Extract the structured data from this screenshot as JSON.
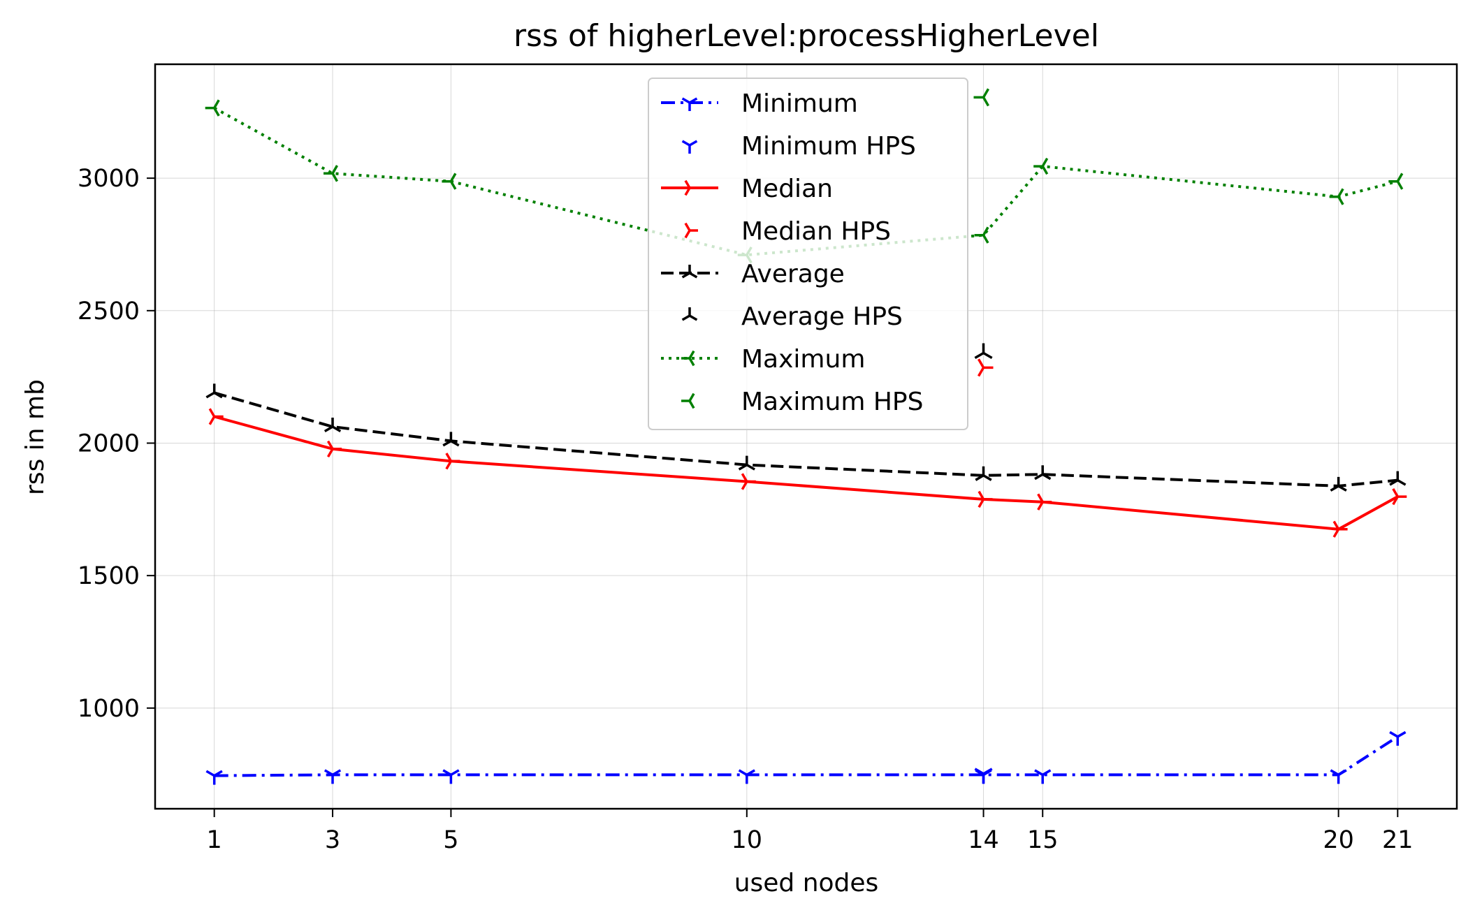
{
  "chart_data": {
    "type": "line",
    "title": "rss of higherLevel:processHigherLevel",
    "xlabel": "used nodes",
    "ylabel": "rss in mb",
    "xlim": [
      0.0,
      22.0
    ],
    "ylim": [
      620,
      3430
    ],
    "x_ticks": [
      1,
      3,
      5,
      10,
      14,
      15,
      20,
      21
    ],
    "y_ticks": [
      1000,
      1500,
      2000,
      2500,
      3000
    ],
    "grid": true,
    "legend_position": "top-center",
    "x": [
      1,
      3,
      5,
      10,
      14,
      15,
      20,
      21
    ],
    "series": [
      {
        "name": "Minimum",
        "color": "#0000ff",
        "dash": "dashdot",
        "marker": "tri_down",
        "values": [
          745,
          748,
          748,
          748,
          748,
          748,
          748,
          892
        ]
      },
      {
        "name": "Median",
        "color": "#ff0000",
        "dash": "solid",
        "marker": "tri_right",
        "values": [
          2100,
          1978,
          1932,
          1855,
          1788,
          1778,
          1675,
          1798
        ]
      },
      {
        "name": "Average",
        "color": "#000000",
        "dash": "dashed",
        "marker": "tri_up",
        "values": [
          2190,
          2062,
          2008,
          1918,
          1878,
          1882,
          1838,
          1860
        ]
      },
      {
        "name": "Maximum",
        "color": "#008000",
        "dash": "dotted",
        "marker": "tri_left",
        "values": [
          3265,
          3018,
          2988,
          2710,
          2785,
          3045,
          2930,
          2988
        ]
      }
    ],
    "hps_points": [
      {
        "name": "Minimum HPS",
        "color": "#0000ff",
        "marker": "tri_down",
        "x": 14,
        "y": 752
      },
      {
        "name": "Median HPS",
        "color": "#ff0000",
        "marker": "tri_right",
        "x": 14,
        "y": 2285
      },
      {
        "name": "Average HPS",
        "color": "#000000",
        "marker": "tri_up",
        "x": 14,
        "y": 2340
      },
      {
        "name": "Maximum HPS",
        "color": "#008000",
        "marker": "tri_left",
        "x": 14,
        "y": 3305
      }
    ],
    "legend": [
      {
        "label": "Minimum",
        "color": "#0000ff",
        "dash": "dashdot",
        "marker": "tri_down",
        "line": true
      },
      {
        "label": "Minimum HPS",
        "color": "#0000ff",
        "marker": "tri_down",
        "line": false
      },
      {
        "label": "Median",
        "color": "#ff0000",
        "dash": "solid",
        "marker": "tri_right",
        "line": true
      },
      {
        "label": "Median HPS",
        "color": "#ff0000",
        "marker": "tri_right",
        "line": false
      },
      {
        "label": "Average",
        "color": "#000000",
        "dash": "dashed",
        "marker": "tri_up",
        "line": true
      },
      {
        "label": "Average HPS",
        "color": "#000000",
        "marker": "tri_up",
        "line": false
      },
      {
        "label": "Maximum",
        "color": "#008000",
        "dash": "dotted",
        "marker": "tri_left",
        "line": true
      },
      {
        "label": "Maximum HPS",
        "color": "#008000",
        "marker": "tri_left",
        "line": false
      }
    ]
  }
}
